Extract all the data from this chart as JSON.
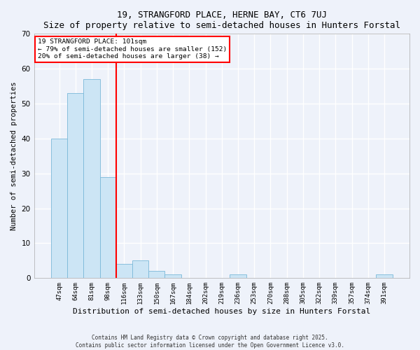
{
  "title": "19, STRANGFORD PLACE, HERNE BAY, CT6 7UJ",
  "subtitle": "Size of property relative to semi-detached houses in Hunters Forstal",
  "xlabel": "Distribution of semi-detached houses by size in Hunters Forstal",
  "ylabel": "Number of semi-detached properties",
  "bar_values": [
    40,
    53,
    57,
    29,
    4,
    5,
    2,
    1,
    0,
    0,
    0,
    1,
    0,
    0,
    0,
    0,
    0,
    0,
    0,
    0,
    1
  ],
  "bin_labels": [
    "47sqm",
    "64sqm",
    "81sqm",
    "98sqm",
    "116sqm",
    "133sqm",
    "150sqm",
    "167sqm",
    "184sqm",
    "202sqm",
    "219sqm",
    "236sqm",
    "253sqm",
    "270sqm",
    "288sqm",
    "305sqm",
    "322sqm",
    "339sqm",
    "357sqm",
    "374sqm",
    "391sqm"
  ],
  "bar_color": "#cce5f5",
  "bar_edge_color": "#7ab8d9",
  "bg_color": "#eef2fa",
  "grid_color": "#ffffff",
  "vline_color": "red",
  "vline_bin_index": 3,
  "annotation_title": "19 STRANGFORD PLACE: 101sqm",
  "annotation_line1": "← 79% of semi-detached houses are smaller (152)",
  "annotation_line2": "20% of semi-detached houses are larger (38) →",
  "ylim": [
    0,
    70
  ],
  "yticks": [
    0,
    10,
    20,
    30,
    40,
    50,
    60,
    70
  ],
  "footnote1": "Contains HM Land Registry data © Crown copyright and database right 2025.",
  "footnote2": "Contains public sector information licensed under the Open Government Licence v3.0."
}
